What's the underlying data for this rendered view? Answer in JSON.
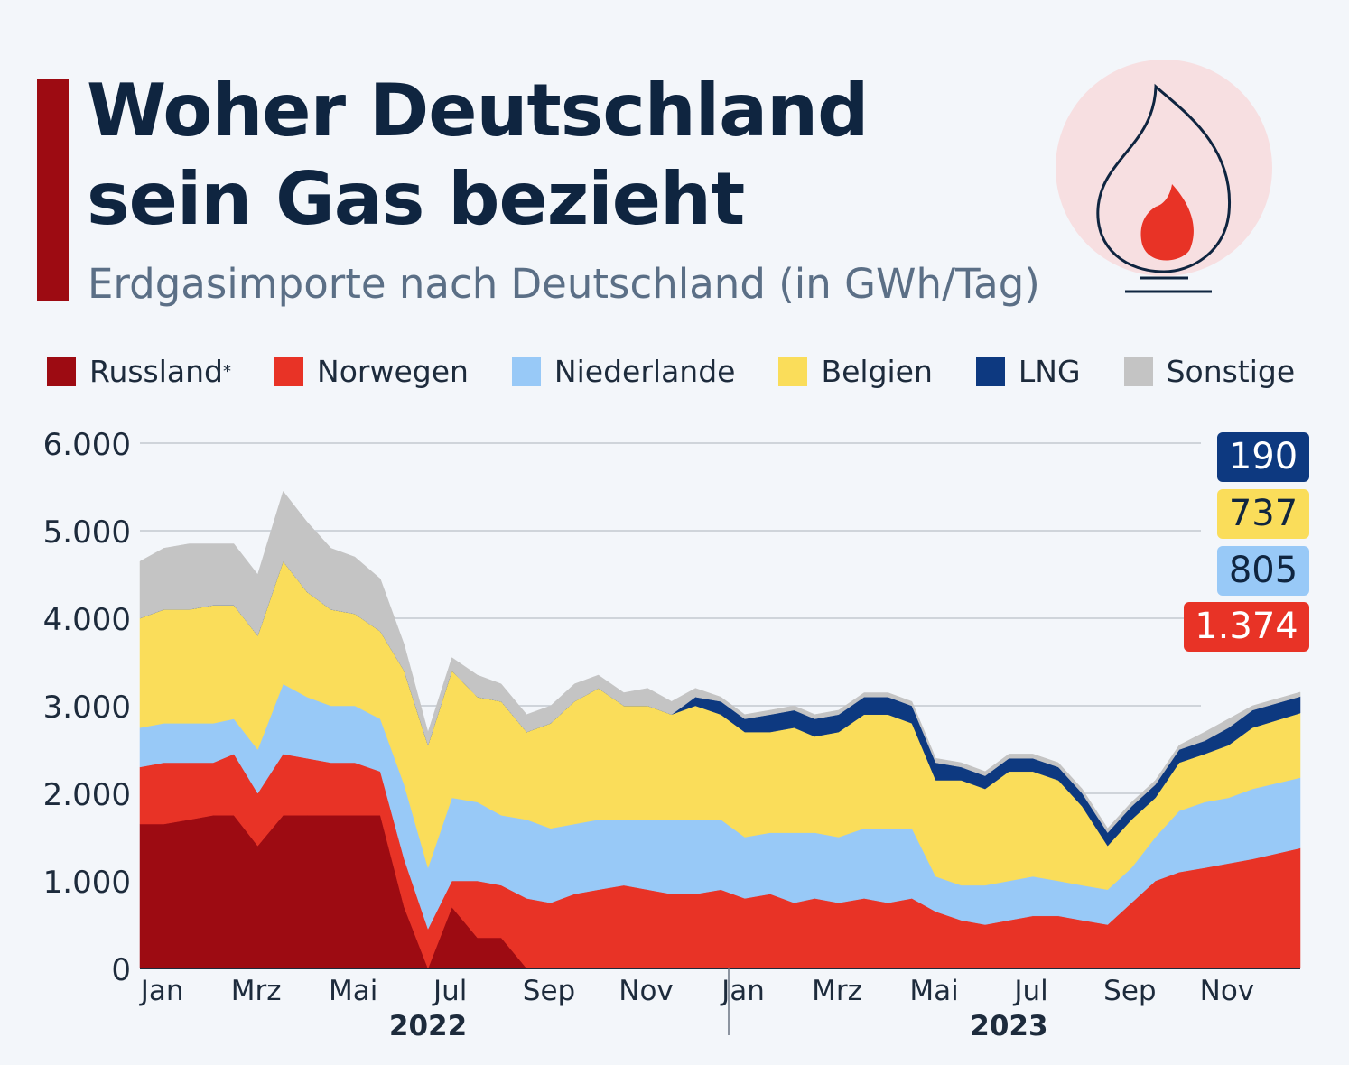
{
  "title_line1": "Woher Deutschland",
  "title_line2": "sein Gas bezieht",
  "subtitle": "Erdgasimporte nach Deutschland (in GWh/Tag)",
  "icon": "gas-flame-icon",
  "legend": [
    {
      "label": "Russland",
      "mark": "*",
      "color": "#9d0b12"
    },
    {
      "label": "Norwegen",
      "color": "#e83326"
    },
    {
      "label": "Niederlande",
      "color": "#98c9f7"
    },
    {
      "label": "Belgien",
      "color": "#fadd5a"
    },
    {
      "label": "LNG",
      "color": "#0d3980"
    },
    {
      "label": "Sonstige",
      "color": "#c4c4c4"
    }
  ],
  "end_labels": [
    {
      "series": "LNG",
      "text": "190",
      "bg": "#0d3980",
      "fg": "#ffffff"
    },
    {
      "series": "Belgien",
      "text": "737",
      "bg": "#fadd5a",
      "fg": "#0f2540"
    },
    {
      "series": "Niederlande",
      "text": "805",
      "bg": "#98c9f7",
      "fg": "#0f2540"
    },
    {
      "series": "Norwegen",
      "text": "1.374",
      "bg": "#e83326",
      "fg": "#ffffff"
    }
  ],
  "chart_data": {
    "type": "area",
    "stacked": true,
    "ylim": [
      0,
      6000
    ],
    "y_ticks": [
      "0",
      "1.000",
      "2.000",
      "3.000",
      "4.000",
      "5.000",
      "6.000"
    ],
    "y_tick_values": [
      0,
      1000,
      2000,
      3000,
      4000,
      5000,
      6000
    ],
    "grid": true,
    "legend_position": "top",
    "x_range": [
      "2022-01-01",
      "2023-12-31"
    ],
    "x_ticks": [
      {
        "label": "Jan",
        "date": "2022-01-15"
      },
      {
        "label": "Mrz",
        "date": "2022-03-15"
      },
      {
        "label": "Mai",
        "date": "2022-05-15"
      },
      {
        "label": "Jul",
        "date": "2022-07-15"
      },
      {
        "label": "Sep",
        "date": "2022-09-15"
      },
      {
        "label": "Nov",
        "date": "2022-11-15"
      },
      {
        "label": "Jan",
        "date": "2023-01-15"
      },
      {
        "label": "Mrz",
        "date": "2023-03-15"
      },
      {
        "label": "Mai",
        "date": "2023-05-15"
      },
      {
        "label": "Jul",
        "date": "2023-07-15"
      },
      {
        "label": "Sep",
        "date": "2023-09-15"
      },
      {
        "label": "Nov",
        "date": "2023-11-15"
      }
    ],
    "years": [
      {
        "label": "2022",
        "date": "2022-07-01"
      },
      {
        "label": "2023",
        "date": "2023-07-01"
      }
    ],
    "x": [
      "2022-01-01",
      "2022-01-16",
      "2022-02-01",
      "2022-02-16",
      "2022-03-01",
      "2022-03-16",
      "2022-04-01",
      "2022-04-16",
      "2022-05-01",
      "2022-05-16",
      "2022-06-01",
      "2022-06-16",
      "2022-07-01",
      "2022-07-16",
      "2022-08-01",
      "2022-08-16",
      "2022-09-01",
      "2022-09-16",
      "2022-10-01",
      "2022-10-16",
      "2022-11-01",
      "2022-11-16",
      "2022-12-01",
      "2022-12-16",
      "2023-01-01",
      "2023-01-16",
      "2023-02-01",
      "2023-02-16",
      "2023-03-01",
      "2023-03-16",
      "2023-04-01",
      "2023-04-16",
      "2023-05-01",
      "2023-05-16",
      "2023-06-01",
      "2023-06-16",
      "2023-07-01",
      "2023-07-16",
      "2023-08-01",
      "2023-08-16",
      "2023-09-01",
      "2023-09-16",
      "2023-10-01",
      "2023-10-16",
      "2023-11-01",
      "2023-11-16",
      "2023-12-01",
      "2023-12-31"
    ],
    "series": [
      {
        "name": "Russland",
        "color": "#9d0b12",
        "values": [
          1650,
          1650,
          1700,
          1750,
          1750,
          1400,
          1750,
          1750,
          1750,
          1750,
          1750,
          700,
          0,
          700,
          350,
          350,
          0,
          0,
          0,
          0,
          0,
          0,
          0,
          0,
          0,
          0,
          0,
          0,
          0,
          0,
          0,
          0,
          0,
          0,
          0,
          0,
          0,
          0,
          0,
          0,
          0,
          0,
          0,
          0,
          0,
          0,
          0,
          0
        ]
      },
      {
        "name": "Norwegen",
        "color": "#e83326",
        "values": [
          650,
          700,
          650,
          600,
          700,
          600,
          700,
          650,
          600,
          600,
          500,
          550,
          450,
          300,
          650,
          600,
          800,
          750,
          850,
          900,
          950,
          900,
          850,
          850,
          900,
          800,
          850,
          750,
          800,
          750,
          800,
          750,
          800,
          650,
          550,
          500,
          550,
          600,
          600,
          550,
          500,
          750,
          1000,
          1100,
          1150,
          1200,
          1250,
          1374
        ]
      },
      {
        "name": "Niederlande",
        "color": "#98c9f7",
        "values": [
          450,
          450,
          450,
          450,
          400,
          500,
          800,
          700,
          650,
          650,
          600,
          850,
          700,
          950,
          900,
          800,
          900,
          850,
          800,
          800,
          750,
          800,
          850,
          850,
          800,
          700,
          700,
          800,
          750,
          750,
          800,
          850,
          800,
          400,
          400,
          450,
          450,
          450,
          400,
          400,
          400,
          400,
          500,
          700,
          750,
          750,
          800,
          805
        ]
      },
      {
        "name": "Belgien",
        "color": "#fadd5a",
        "values": [
          1250,
          1300,
          1300,
          1350,
          1300,
          1300,
          1400,
          1200,
          1100,
          1050,
          1000,
          1300,
          1400,
          1450,
          1200,
          1300,
          1000,
          1200,
          1400,
          1500,
          1300,
          1300,
          1200,
          1300,
          1200,
          1200,
          1150,
          1200,
          1100,
          1200,
          1300,
          1300,
          1200,
          1100,
          1200,
          1100,
          1250,
          1200,
          1150,
          900,
          500,
          550,
          450,
          550,
          550,
          600,
          700,
          737
        ]
      },
      {
        "name": "LNG",
        "color": "#0d3980",
        "values": [
          0,
          0,
          0,
          0,
          0,
          0,
          0,
          0,
          0,
          0,
          0,
          0,
          0,
          0,
          0,
          0,
          0,
          0,
          0,
          0,
          0,
          0,
          0,
          100,
          150,
          150,
          200,
          200,
          200,
          200,
          200,
          200,
          200,
          200,
          150,
          150,
          150,
          150,
          150,
          150,
          150,
          150,
          150,
          150,
          150,
          200,
          200,
          190
        ]
      },
      {
        "name": "Sonstige",
        "color": "#c4c4c4",
        "values": [
          650,
          700,
          750,
          700,
          700,
          700,
          800,
          800,
          700,
          650,
          600,
          300,
          150,
          150,
          250,
          200,
          200,
          200,
          200,
          150,
          150,
          200,
          150,
          100,
          50,
          50,
          50,
          50,
          50,
          50,
          50,
          50,
          50,
          50,
          50,
          50,
          50,
          50,
          50,
          50,
          50,
          50,
          50,
          50,
          100,
          100,
          50,
          50
        ]
      }
    ]
  }
}
